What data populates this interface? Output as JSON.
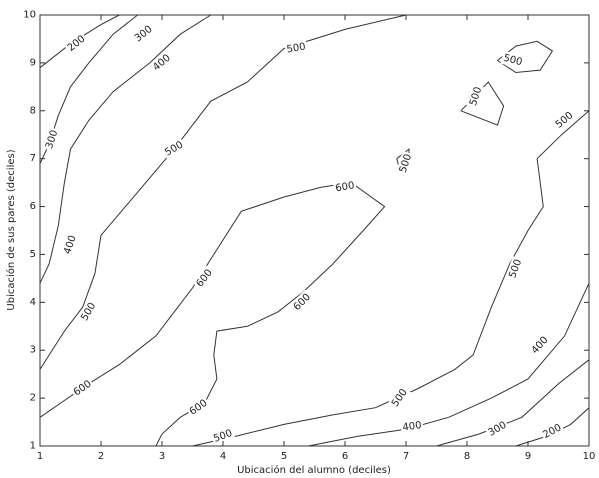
{
  "chart_data": {
    "type": "contour",
    "title": "",
    "xlabel": "Ubicación del alumno (deciles)",
    "ylabel": "Ubicación de sus pares (deciles)",
    "xlim": [
      1,
      10
    ],
    "ylim": [
      1,
      10
    ],
    "xticks": [
      1,
      2,
      3,
      4,
      5,
      6,
      7,
      8,
      9,
      10
    ],
    "yticks": [
      1,
      2,
      3,
      4,
      5,
      6,
      7,
      8,
      9,
      10
    ],
    "grid": false,
    "line_color": "#333333",
    "contours": [
      {
        "level": 200,
        "points": [
          [
            1.0,
            8.9
          ],
          [
            1.5,
            9.4
          ],
          [
            2.0,
            9.8
          ],
          [
            2.3,
            10.0
          ]
        ]
      },
      {
        "level": 300,
        "points": [
          [
            2.6,
            10.0
          ],
          [
            2.2,
            9.6
          ],
          [
            1.8,
            9.0
          ],
          [
            1.5,
            8.5
          ],
          [
            1.3,
            7.9
          ],
          [
            1.15,
            7.3
          ],
          [
            1.0,
            6.9
          ]
        ]
      },
      {
        "level": 400,
        "points": [
          [
            3.8,
            10.0
          ],
          [
            3.3,
            9.6
          ],
          [
            2.8,
            9.0
          ],
          [
            2.2,
            8.4
          ],
          [
            1.8,
            7.8
          ],
          [
            1.5,
            7.2
          ],
          [
            1.4,
            6.5
          ],
          [
            1.3,
            5.6
          ],
          [
            1.15,
            4.8
          ],
          [
            1.0,
            4.4
          ]
        ]
      },
      {
        "level": 500,
        "points": [
          [
            7.0,
            10.0
          ],
          [
            6.0,
            9.7
          ],
          [
            5.0,
            9.3
          ],
          [
            4.4,
            8.6
          ],
          [
            3.8,
            8.2
          ],
          [
            3.5,
            7.7
          ],
          [
            3.2,
            7.2
          ],
          [
            2.8,
            6.6
          ],
          [
            2.4,
            6.0
          ],
          [
            2.0,
            5.4
          ],
          [
            1.9,
            4.6
          ],
          [
            1.7,
            3.9
          ],
          [
            1.4,
            3.4
          ],
          [
            1.0,
            2.6
          ]
        ]
      },
      {
        "level": 600,
        "points": [
          [
            1.0,
            1.6
          ],
          [
            1.4,
            1.95
          ],
          [
            1.8,
            2.3
          ],
          [
            2.3,
            2.7
          ],
          [
            2.9,
            3.3
          ],
          [
            3.2,
            3.8
          ],
          [
            3.5,
            4.3
          ],
          [
            3.85,
            5.0
          ],
          [
            4.3,
            5.9
          ],
          [
            5.0,
            6.2
          ],
          [
            5.6,
            6.4
          ],
          [
            6.1,
            6.5
          ],
          [
            6.65,
            6.0
          ],
          [
            6.3,
            5.5
          ],
          [
            5.8,
            4.8
          ],
          [
            5.3,
            4.2
          ],
          [
            4.9,
            3.8
          ],
          [
            4.4,
            3.5
          ],
          [
            3.9,
            3.4
          ],
          [
            3.85,
            2.9
          ],
          [
            3.9,
            2.4
          ],
          [
            3.7,
            1.9
          ],
          [
            3.3,
            1.6
          ],
          [
            3.0,
            1.25
          ],
          [
            2.9,
            1.0
          ]
        ]
      },
      {
        "level": 500,
        "points": [
          [
            3.5,
            1.0
          ],
          [
            4.2,
            1.2
          ],
          [
            5.0,
            1.45
          ],
          [
            5.8,
            1.65
          ],
          [
            6.5,
            1.8
          ],
          [
            7.2,
            2.2
          ],
          [
            7.8,
            2.6
          ],
          [
            8.1,
            2.9
          ],
          [
            8.4,
            3.9
          ],
          [
            8.7,
            4.8
          ],
          [
            9.0,
            5.5
          ],
          [
            9.25,
            6.0
          ],
          [
            9.15,
            7.0
          ],
          [
            9.55,
            7.5
          ],
          [
            10.0,
            8.0
          ]
        ]
      },
      {
        "level": 400,
        "points": [
          [
            5.4,
            1.0
          ],
          [
            6.2,
            1.2
          ],
          [
            7.0,
            1.35
          ],
          [
            7.7,
            1.6
          ],
          [
            8.4,
            2.0
          ],
          [
            9.0,
            2.4
          ],
          [
            9.6,
            3.3
          ],
          [
            10.0,
            4.4
          ]
        ]
      },
      {
        "level": 300,
        "points": [
          [
            7.5,
            1.0
          ],
          [
            8.2,
            1.25
          ],
          [
            8.9,
            1.6
          ],
          [
            9.5,
            2.3
          ],
          [
            10.0,
            2.8
          ]
        ]
      },
      {
        "level": 200,
        "points": [
          [
            8.8,
            1.0
          ],
          [
            9.3,
            1.2
          ],
          [
            9.7,
            1.45
          ],
          [
            10.0,
            1.8
          ]
        ]
      },
      {
        "level": 500,
        "points": [
          [
            6.85,
            7.0
          ],
          [
            7.05,
            7.2
          ],
          [
            7.05,
            6.75
          ],
          [
            6.9,
            6.75
          ],
          [
            6.85,
            7.0
          ]
        ]
      },
      {
        "level": 500,
        "points": [
          [
            7.9,
            8.0
          ],
          [
            8.35,
            8.6
          ],
          [
            8.6,
            8.1
          ],
          [
            8.5,
            7.7
          ],
          [
            7.9,
            8.0
          ]
        ]
      },
      {
        "level": 500,
        "points": [
          [
            8.5,
            9.05
          ],
          [
            8.8,
            9.35
          ],
          [
            9.15,
            9.45
          ],
          [
            9.4,
            9.25
          ],
          [
            9.2,
            8.85
          ],
          [
            8.8,
            8.8
          ],
          [
            8.5,
            9.05
          ]
        ]
      }
    ],
    "labels": [
      {
        "text": "200",
        "x": 1.6,
        "y": 9.4,
        "angle": -38
      },
      {
        "text": "300",
        "x": 2.7,
        "y": 9.6,
        "angle": -38
      },
      {
        "text": "300",
        "x": 1.2,
        "y": 7.4,
        "angle": -72
      },
      {
        "text": "400",
        "x": 3.0,
        "y": 9.0,
        "angle": -40
      },
      {
        "text": "400",
        "x": 1.5,
        "y": 5.2,
        "angle": -72
      },
      {
        "text": "500",
        "x": 5.2,
        "y": 9.3,
        "angle": -10
      },
      {
        "text": "500",
        "x": 3.2,
        "y": 7.2,
        "angle": -30
      },
      {
        "text": "500",
        "x": 1.8,
        "y": 3.8,
        "angle": -60
      },
      {
        "text": "500",
        "x": 4.0,
        "y": 1.2,
        "angle": -20
      },
      {
        "text": "500",
        "x": 7.0,
        "y": 6.9,
        "angle": -72
      },
      {
        "text": "500",
        "x": 8.15,
        "y": 8.3,
        "angle": -72
      },
      {
        "text": "500",
        "x": 8.75,
        "y": 9.05,
        "angle": 15
      },
      {
        "text": "500",
        "x": 9.6,
        "y": 7.8,
        "angle": -40
      },
      {
        "text": "500",
        "x": 6.9,
        "y": 2.0,
        "angle": -55
      },
      {
        "text": "500",
        "x": 8.8,
        "y": 4.7,
        "angle": -70
      },
      {
        "text": "600",
        "x": 6.0,
        "y": 6.4,
        "angle": -10
      },
      {
        "text": "600",
        "x": 3.7,
        "y": 4.5,
        "angle": -52
      },
      {
        "text": "600",
        "x": 5.3,
        "y": 4.0,
        "angle": -45
      },
      {
        "text": "600",
        "x": 1.7,
        "y": 2.2,
        "angle": -35
      },
      {
        "text": "600",
        "x": 3.6,
        "y": 1.8,
        "angle": -35
      },
      {
        "text": "400",
        "x": 7.1,
        "y": 1.4,
        "angle": -8
      },
      {
        "text": "400",
        "x": 9.2,
        "y": 3.1,
        "angle": -48
      },
      {
        "text": "300",
        "x": 8.5,
        "y": 1.35,
        "angle": -30
      },
      {
        "text": "200",
        "x": 9.4,
        "y": 1.3,
        "angle": -28
      }
    ]
  }
}
